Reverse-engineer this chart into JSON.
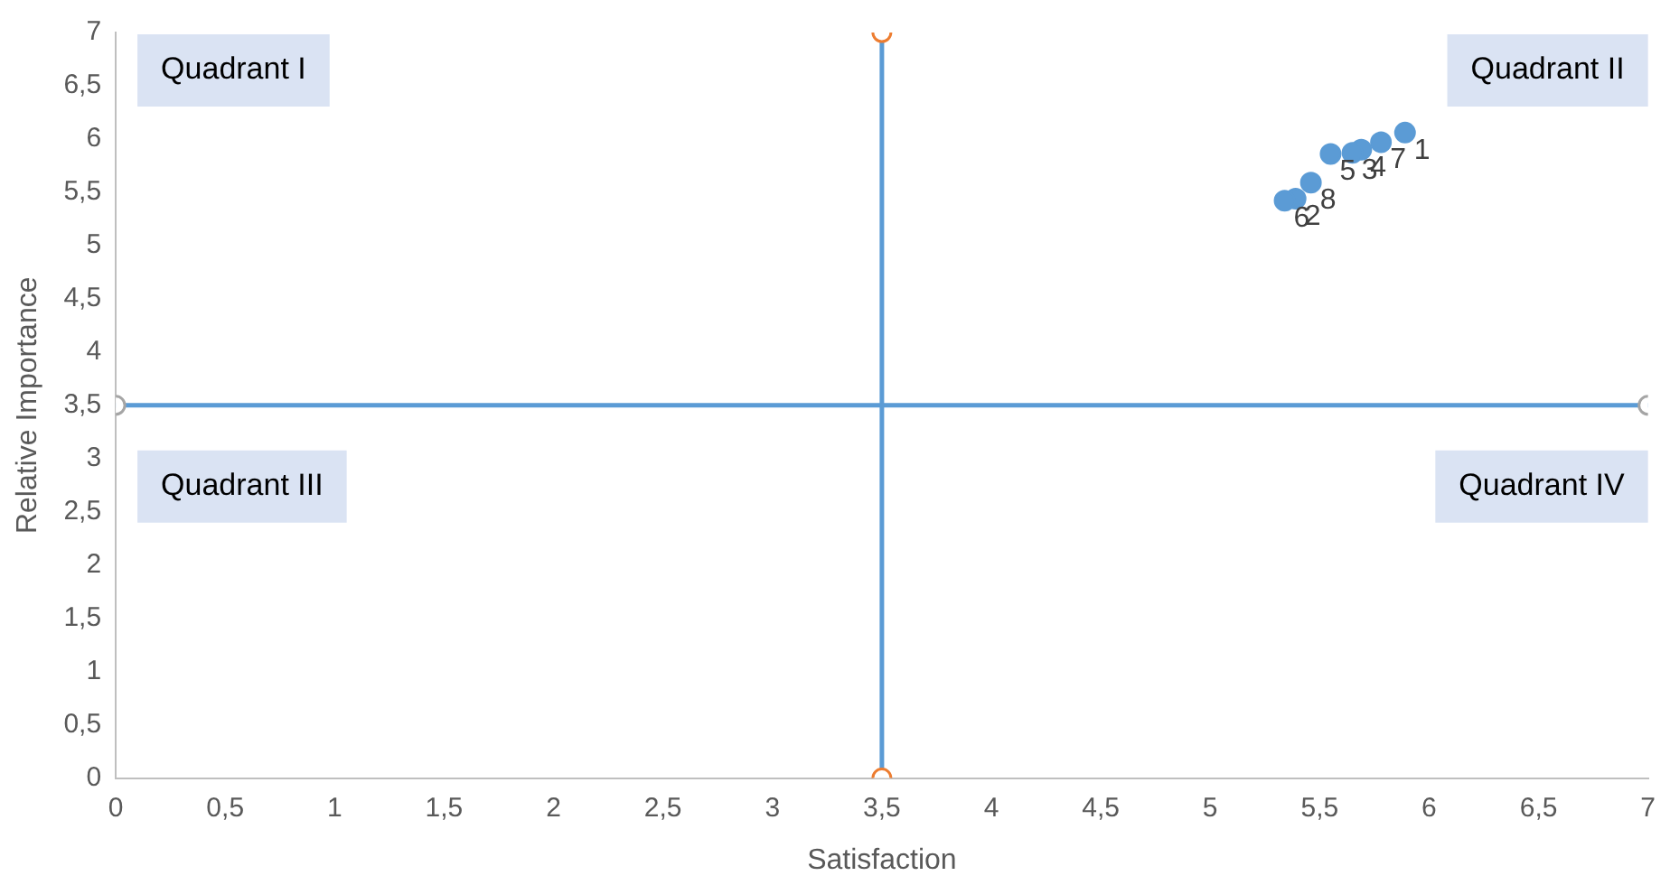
{
  "chart_data": {
    "type": "scatter",
    "xlabel": "Satisfaction",
    "ylabel": "Relative Importance",
    "xlim": [
      0,
      7
    ],
    "ylim": [
      0,
      7
    ],
    "xticks": [
      0,
      {
        "value": 0.5,
        "label": "0,5"
      },
      1,
      {
        "value": 1.5,
        "label": "1,5"
      },
      2,
      {
        "value": 2.5,
        "label": "2,5"
      },
      3,
      {
        "value": 3.5,
        "label": "3,5"
      },
      4,
      {
        "value": 4.5,
        "label": "4,5"
      },
      5,
      {
        "value": 5.5,
        "label": "5,5"
      },
      6,
      {
        "value": 6.5,
        "label": "6,5"
      },
      7
    ],
    "yticks": [
      0,
      {
        "value": 0.5,
        "label": "0,5"
      },
      1,
      {
        "value": 1.5,
        "label": "1,5"
      },
      2,
      {
        "value": 2.5,
        "label": "2,5"
      },
      3,
      {
        "value": 3.5,
        "label": "3,5"
      },
      4,
      {
        "value": 4.5,
        "label": "4,5"
      },
      5,
      {
        "value": 5.5,
        "label": "5,5"
      },
      6,
      {
        "value": 6.5,
        "label": "6,5"
      },
      7
    ],
    "grid": false,
    "legend": false,
    "marker": "circle",
    "annotations": [
      "Quadrant I",
      "Quadrant II",
      "Quadrant III",
      "Quadrant IV",
      {
        "text": "1",
        "x": 5.89,
        "y": 6.06
      },
      {
        "text": "7",
        "x": 5.78,
        "y": 5.97
      },
      {
        "text": "4",
        "x": 5.69,
        "y": 5.9
      },
      {
        "text": "3",
        "x": 5.65,
        "y": 5.87
      },
      {
        "text": "5",
        "x": 5.55,
        "y": 5.86
      },
      {
        "text": "8",
        "x": 5.46,
        "y": 5.59
      },
      {
        "text": "2",
        "x": 5.39,
        "y": 5.44
      },
      {
        "text": "6",
        "x": 5.34,
        "y": 5.42
      }
    ],
    "series": [
      {
        "color": "#5b9bd5",
        "x": [
          5.89,
          5.78,
          5.69,
          5.65,
          5.55,
          5.46,
          5.39,
          5.34
        ],
        "values": [
          6.06,
          5.97,
          5.9,
          5.87,
          5.86,
          5.59,
          5.44,
          5.42
        ]
      },
      {
        "type": "line",
        "color": "#5b9bd5",
        "colors": [
          "#ed7d31",
          "#ed7d31"
        ],
        "x": [
          3.5,
          3.5
        ],
        "values": [
          0,
          7
        ]
      },
      {
        "type": "line",
        "color": "#5b9bd5",
        "colors": [
          "#a5a5a5",
          "#a5a5a5"
        ],
        "x": [
          0,
          7
        ],
        "values": [
          3.5,
          3.5
        ]
      }
    ]
  }
}
